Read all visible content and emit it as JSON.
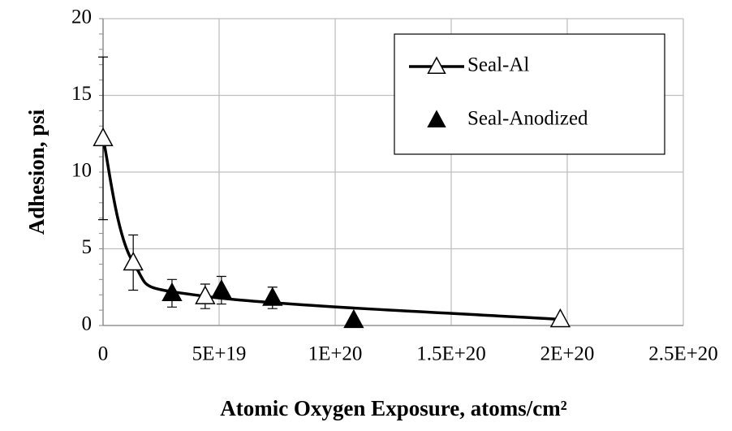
{
  "chart_data": {
    "type": "scatter",
    "xlabel": "Atomic Oxygen Exposure, atoms/cm²",
    "ylabel": "Adhesion, psi",
    "xlim": [
      0,
      2.5e+20
    ],
    "xticks": [
      0,
      {
        "value": 5e+19,
        "label": "5E+19"
      },
      {
        "value": 1e+20,
        "label": "1E+20"
      },
      {
        "value": 1.5e+20,
        "label": "1.5E+20"
      },
      {
        "value": 2e+20,
        "label": "2E+20"
      },
      {
        "value": 2.5e+20,
        "label": "2.5E+20"
      }
    ],
    "ylim": [
      0,
      20
    ],
    "yticks": [
      0,
      5,
      10,
      15,
      20
    ],
    "grid": true,
    "legend": "upper right",
    "series": [
      {
        "name": "Seal-Al",
        "color": "#000000",
        "marker": "open-triangle",
        "line": true,
        "smooth": true,
        "x": [
          0,
          1.3e+19,
          4.4e+19,
          1.97e+20
        ],
        "values": [
          12.2,
          4.1,
          1.9,
          0.4
        ],
        "errors": [
          5.3,
          1.8,
          0.8,
          null
        ]
      },
      {
        "name": "Seal-Anodized",
        "color": "#000000",
        "marker": "filled-triangle",
        "line": false,
        "x": [
          2.97e+19,
          5.1e+19,
          7.3e+19,
          1.08e+20
        ],
        "values": [
          2.1,
          2.3,
          1.8,
          0.35
        ],
        "errors": [
          0.9,
          0.9,
          0.7,
          null
        ]
      }
    ]
  }
}
